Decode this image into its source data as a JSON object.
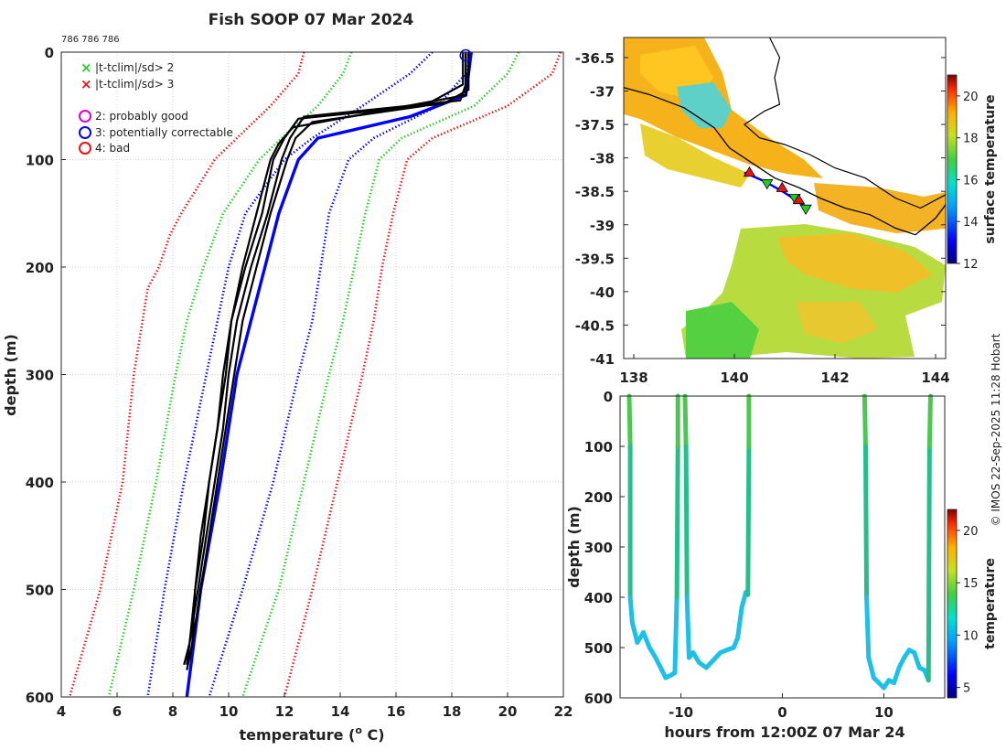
{
  "header": {
    "title": "Fish SOOP 07 Mar 2024",
    "id_text": "786 786 786",
    "credit": "© IMOS 22-Sep-2025 11:28 Hobart"
  },
  "colors": {
    "profile": "#000000",
    "qc_potentially_correctable": "#0000ff",
    "clim_sd2": "#22cc22",
    "clim_sd3": "#ee1111",
    "legend_probably_good": "#dd00dd"
  },
  "chart_data": [
    {
      "id": "profile",
      "type": "line",
      "xlabel": "temperature (",
      "xlabel_sup": "o",
      "xlabel_end": " C)",
      "ylabel": "depth (m)",
      "xlim": [
        4,
        22
      ],
      "ylim": [
        0,
        600
      ],
      "y_reversed": true,
      "xticks": [
        4,
        6,
        8,
        10,
        12,
        14,
        16,
        18,
        20,
        22
      ],
      "yticks": [
        0,
        100,
        200,
        300,
        400,
        500,
        600
      ],
      "grid": true,
      "legend": {
        "placement": "top-left",
        "markers": [
          {
            "symbol": "x",
            "label": "|t-tclim|/sd> 2",
            "color": "#22cc22"
          },
          {
            "symbol": "x",
            "label": "|t-tclim|/sd> 3",
            "color": "#ee1111"
          }
        ],
        "qc": [
          {
            "symbol": "o",
            "label": "2: probably good",
            "color": "#dd00dd"
          },
          {
            "symbol": "o",
            "label": "3: potentially correctable",
            "color": "#0000ff"
          },
          {
            "symbol": "o",
            "label": "4: bad",
            "color": "#ee1111"
          }
        ]
      },
      "series": [
        {
          "name": "clim -3sd",
          "style": "dotted",
          "color": "#ee1111",
          "depth": [
            0,
            20,
            50,
            80,
            100,
            150,
            170,
            200,
            220,
            300,
            400,
            500,
            600
          ],
          "temp": [
            12.7,
            12.5,
            11.5,
            10.3,
            9.5,
            8.3,
            7.9,
            7.5,
            7.1,
            6.6,
            6.2,
            5.4,
            4.3
          ]
        },
        {
          "name": "clim -2sd",
          "style": "dotted",
          "color": "#22cc22",
          "depth": [
            0,
            20,
            50,
            80,
            100,
            150,
            200,
            250,
            300,
            400,
            500,
            600
          ],
          "temp": [
            14.4,
            14.1,
            13.2,
            11.9,
            11.1,
            9.8,
            9.1,
            8.5,
            8.1,
            7.4,
            6.6,
            5.7
          ]
        },
        {
          "name": "clim sd2",
          "style": "dotted",
          "color": "#0000ff",
          "depth": [
            0,
            20,
            50,
            80,
            100,
            150,
            200,
            250,
            300,
            400,
            500,
            600
          ],
          "temp": [
            17.3,
            16.5,
            14.8,
            13.0,
            12.0,
            10.6,
            10.0,
            9.6,
            9.2,
            8.4,
            7.7,
            7.1
          ]
        },
        {
          "name": "clim sd2 b",
          "style": "dotted",
          "color": "#0000ff",
          "depth": [
            0,
            20,
            50,
            80,
            100,
            150,
            200,
            250,
            300,
            400,
            500,
            600
          ],
          "temp": [
            18.7,
            18.5,
            17.5,
            15.2,
            14.3,
            13.6,
            13.3,
            13.0,
            12.5,
            11.6,
            10.5,
            9.3
          ]
        },
        {
          "name": "clim +2sd",
          "style": "dotted",
          "color": "#22cc22",
          "depth": [
            0,
            20,
            50,
            80,
            100,
            150,
            200,
            250,
            300,
            400,
            500,
            600
          ],
          "temp": [
            20.4,
            20.0,
            18.8,
            16.2,
            15.4,
            14.9,
            14.5,
            14.1,
            13.6,
            12.7,
            11.8,
            10.5
          ]
        },
        {
          "name": "clim +3sd",
          "style": "dotted",
          "color": "#ee1111",
          "depth": [
            0,
            20,
            50,
            80,
            100,
            150,
            200,
            250,
            300,
            400,
            500,
            600
          ],
          "temp": [
            21.9,
            21.6,
            20.0,
            17.3,
            16.4,
            15.9,
            15.5,
            15.2,
            14.8,
            13.9,
            13.0,
            12.0
          ]
        },
        {
          "name": "qc 3",
          "style": "solid",
          "color": "#0000ff",
          "depth": [
            0,
            40,
            60,
            80,
            100,
            150,
            200,
            250,
            300,
            400,
            500,
            600
          ],
          "temp": [
            18.7,
            18.5,
            16.5,
            13.2,
            12.5,
            11.8,
            11.3,
            10.8,
            10.3,
            9.7,
            9.0,
            8.5
          ]
        },
        {
          "name": "profile 1",
          "style": "solid",
          "color": "#000000",
          "depth": [
            0,
            30,
            45,
            60,
            80,
            100,
            150,
            200,
            250,
            300,
            350,
            400,
            450,
            500,
            550,
            570
          ],
          "temp": [
            18.5,
            18.5,
            18.3,
            12.7,
            12.2,
            11.9,
            11.4,
            10.8,
            10.3,
            10.0,
            9.8,
            9.5,
            9.2,
            8.9,
            8.6,
            8.5
          ]
        },
        {
          "name": "profile 2",
          "style": "solid",
          "color": "#000000",
          "depth": [
            0,
            35,
            48,
            62,
            80,
            100,
            150,
            200,
            250,
            300,
            350,
            400,
            450,
            500,
            550,
            570
          ],
          "temp": [
            18.6,
            18.6,
            17.7,
            12.5,
            12.0,
            11.6,
            11.2,
            10.6,
            10.1,
            9.8,
            9.6,
            9.3,
            9.0,
            8.8,
            8.6,
            8.4
          ]
        },
        {
          "name": "profile 3",
          "style": "solid",
          "color": "#000000",
          "depth": [
            0,
            30,
            50,
            65,
            80,
            100,
            150,
            200,
            250,
            300,
            350,
            400,
            450,
            500,
            550,
            565
          ],
          "temp": [
            18.4,
            18.4,
            17.0,
            13.0,
            12.4,
            12.1,
            11.5,
            11.0,
            10.5,
            10.2,
            9.9,
            9.6,
            9.3,
            9.0,
            8.7,
            8.6
          ]
        },
        {
          "name": "profile 4",
          "style": "solid",
          "color": "#000000",
          "depth": [
            0,
            40,
            52,
            70,
            85,
            100,
            150,
            200,
            250,
            300,
            350,
            400,
            450,
            500,
            550,
            575
          ],
          "temp": [
            18.5,
            18.5,
            16.0,
            12.3,
            11.8,
            11.5,
            11.0,
            10.5,
            10.1,
            9.9,
            9.6,
            9.3,
            9.1,
            8.8,
            8.7,
            8.5
          ]
        }
      ]
    },
    {
      "id": "map",
      "type": "heatmap",
      "xlim": [
        137.8,
        144.2
      ],
      "ylim": [
        -41.0,
        -36.2
      ],
      "xticks": [
        138,
        140,
        142,
        144
      ],
      "yticks": [
        -36.5,
        -37,
        -37.5,
        -38,
        -38.5,
        -39,
        -39.5,
        -40,
        -40.5,
        -41
      ],
      "xtick_labels": [
        "138",
        "140",
        "142",
        "144"
      ],
      "ytick_labels": [
        "-36.5",
        "-37",
        "-37.5",
        "-38",
        "-38.5",
        "-39",
        "-39.5",
        "-40",
        "-40.5",
        "-41"
      ],
      "colorbar": {
        "label": "surface temperature",
        "range": [
          12,
          21
        ],
        "ticks": [
          12,
          14,
          16,
          18,
          20
        ]
      },
      "track": [
        [
          140.2,
          -38.22
        ],
        [
          140.6,
          -38.35
        ],
        [
          141.0,
          -38.52
        ],
        [
          141.4,
          -38.72
        ]
      ],
      "markers": [
        {
          "lon": 140.3,
          "lat": -38.22,
          "type": "up",
          "color": "#ee1111"
        },
        {
          "lon": 140.65,
          "lat": -38.38,
          "type": "down",
          "color": "#22cc22"
        },
        {
          "lon": 140.95,
          "lat": -38.45,
          "type": "up",
          "color": "#ee1111"
        },
        {
          "lon": 141.2,
          "lat": -38.6,
          "type": "down",
          "color": "#22cc22"
        },
        {
          "lon": 141.28,
          "lat": -38.63,
          "type": "up",
          "color": "#ee1111"
        },
        {
          "lon": 141.42,
          "lat": -38.76,
          "type": "down",
          "color": "#22cc22"
        }
      ]
    },
    {
      "id": "timeseries",
      "type": "scatter",
      "xlabel": "hours from 12:00Z 07 Mar 24",
      "ylabel": "depth (m)",
      "xlim": [
        -16,
        16
      ],
      "ylim": [
        0,
        600
      ],
      "y_reversed": true,
      "xticks": [
        -10,
        0,
        10
      ],
      "yticks": [
        0,
        100,
        200,
        300,
        400,
        500,
        600
      ],
      "colorbar": {
        "label": "temperature",
        "range": [
          4,
          22
        ],
        "ticks": [
          5,
          10,
          15,
          20
        ]
      },
      "series": [
        {
          "name": "casts",
          "t": [
            -15.1,
            -15.0,
            -15.0,
            -14.8,
            -14.3,
            -13.7,
            -13.1,
            -12.5,
            -12.0,
            -11.5,
            -11.0,
            -10.6,
            -10.4,
            -10.3,
            -10.3
          ],
          "depth": [
            0,
            100,
            400,
            450,
            490,
            470,
            500,
            520,
            540,
            560,
            555,
            550,
            400,
            100,
            0
          ]
        },
        {
          "name": "casts2",
          "t": [
            -9.6,
            -9.5,
            -9.4,
            -9.2,
            -8.8,
            -8.2,
            -7.5,
            -6.8,
            -6.1,
            -5.5,
            -4.8,
            -4.4,
            -4.0,
            -3.6,
            -3.4,
            -3.3,
            -3.3
          ],
          "depth": [
            0,
            100,
            400,
            520,
            510,
            530,
            540,
            525,
            510,
            505,
            500,
            480,
            420,
            390,
            395,
            100,
            0
          ]
        },
        {
          "name": "casts3",
          "t": [
            8.1,
            8.2,
            8.3,
            8.5,
            9.0,
            9.5,
            10.0,
            10.5,
            11.0,
            11.5,
            12.0,
            12.5,
            13.0,
            13.5,
            14.0,
            14.4,
            14.5,
            14.6
          ],
          "depth": [
            0,
            100,
            400,
            520,
            560,
            570,
            580,
            565,
            570,
            540,
            520,
            505,
            510,
            540,
            545,
            565,
            100,
            0
          ]
        }
      ]
    }
  ]
}
